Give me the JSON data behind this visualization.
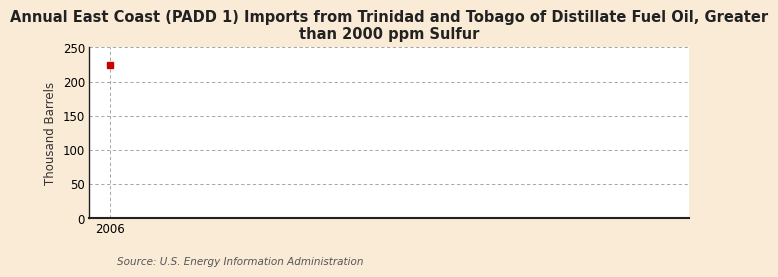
{
  "title": "Annual East Coast (PADD 1) Imports from Trinidad and Tobago of Distillate Fuel Oil, Greater\nthan 2000 ppm Sulfur",
  "ylabel": "Thousand Barrels",
  "source": "Source: U.S. Energy Information Administration",
  "figure_bg": "#faebd7",
  "plot_bg": "#ffffff",
  "data_x": [
    2006
  ],
  "data_y": [
    225
  ],
  "marker_color": "#cc0000",
  "marker": "s",
  "marker_size": 4,
  "xlim": [
    2005.4,
    2023
  ],
  "ylim": [
    0,
    250
  ],
  "yticks": [
    0,
    50,
    100,
    150,
    200,
    250
  ],
  "xticks": [
    2006
  ],
  "grid_color": "#999999",
  "spine_color": "#222222",
  "title_fontsize": 10.5,
  "label_fontsize": 8.5,
  "tick_fontsize": 8.5,
  "source_fontsize": 7.5
}
